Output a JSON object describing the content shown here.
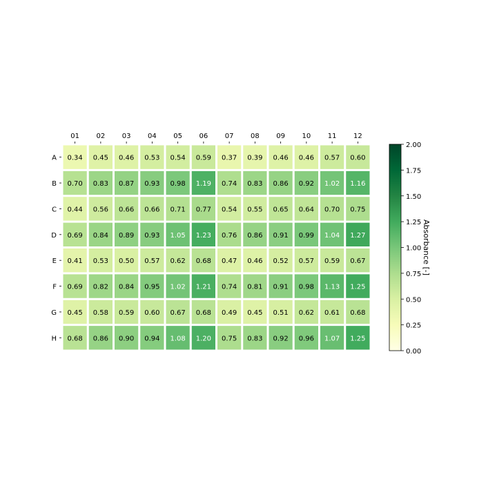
{
  "chart_data": {
    "type": "heatmap",
    "title": "",
    "x_tick_labels": [
      "01",
      "02",
      "03",
      "04",
      "05",
      "06",
      "07",
      "08",
      "09",
      "10",
      "11",
      "12"
    ],
    "y_tick_labels": [
      "A",
      "B",
      "C",
      "D",
      "E",
      "F",
      "G",
      "H"
    ],
    "x_ticks_position": "top",
    "values": [
      [
        "0.34",
        "0.45",
        "0.46",
        "0.53",
        "0.54",
        "0.59",
        "0.37",
        "0.39",
        "0.46",
        "0.46",
        "0.57",
        "0.60"
      ],
      [
        "0.70",
        "0.83",
        "0.87",
        "0.93",
        "0.98",
        "1.19",
        "0.74",
        "0.83",
        "0.86",
        "0.92",
        "1.02",
        "1.16"
      ],
      [
        "0.44",
        "0.56",
        "0.66",
        "0.66",
        "0.71",
        "0.77",
        "0.54",
        "0.55",
        "0.65",
        "0.64",
        "0.70",
        "0.75"
      ],
      [
        "0.69",
        "0.84",
        "0.89",
        "0.93",
        "1.05",
        "1.23",
        "0.76",
        "0.86",
        "0.91",
        "0.99",
        "1.04",
        "1.27"
      ],
      [
        "0.41",
        "0.53",
        "0.50",
        "0.57",
        "0.62",
        "0.68",
        "0.47",
        "0.46",
        "0.52",
        "0.57",
        "0.59",
        "0.67"
      ],
      [
        "0.69",
        "0.82",
        "0.84",
        "0.95",
        "1.02",
        "1.21",
        "0.74",
        "0.81",
        "0.91",
        "0.98",
        "1.13",
        "1.25"
      ],
      [
        "0.45",
        "0.58",
        "0.59",
        "0.60",
        "0.67",
        "0.68",
        "0.49",
        "0.45",
        "0.51",
        "0.62",
        "0.61",
        "0.68"
      ],
      [
        "0.68",
        "0.86",
        "0.90",
        "0.94",
        "1.08",
        "1.20",
        "0.75",
        "0.83",
        "0.92",
        "0.96",
        "1.07",
        "1.25"
      ]
    ],
    "colorbar": {
      "label": "Absorbance [-]",
      "vmin": 0,
      "vmax": 2,
      "tick_labels": [
        "0.00",
        "0.25",
        "0.50",
        "0.75",
        "1.00",
        "1.25",
        "1.50",
        "1.75",
        "2.00"
      ],
      "colormap": "YlGn",
      "colormap_stops": [
        "#ffffe5",
        "#f7fcb9",
        "#d9f0a3",
        "#addd8e",
        "#78c679",
        "#41ab5d",
        "#238443",
        "#006837",
        "#004529"
      ]
    },
    "cell_text_color_dark": "#000000",
    "cell_text_color_light": "#ffffff",
    "light_text_threshold": 1.0,
    "grid_line_color": "#ffffff"
  }
}
